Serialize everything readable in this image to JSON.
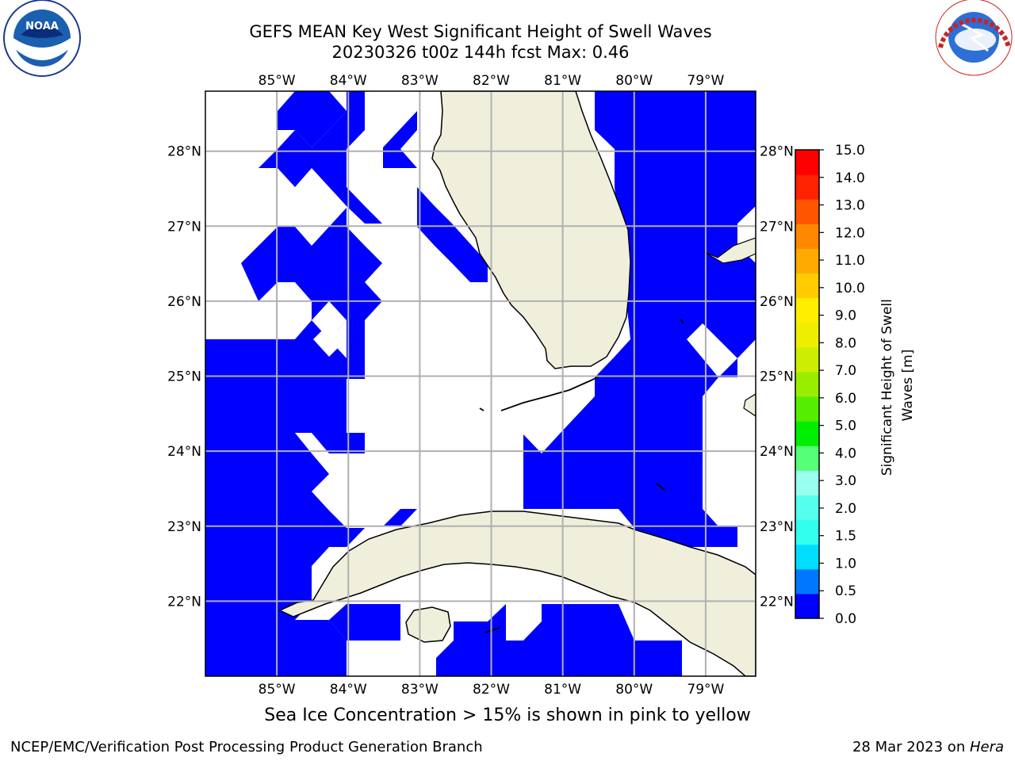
{
  "title_line1": "GEFS MEAN Key West Significant Height of Swell Waves",
  "title_line2": "20230326 t00z 144h fcst   Max: 0.46",
  "bottom_note": "Sea Ice Concentration > 15% is shown in pink to yellow",
  "footer_left": "NCEP/EMC/Verification Post Processing Product Generation Branch",
  "footer_right_date": "28 Mar 2023 on ",
  "footer_right_machine": "Hera",
  "logos": {
    "left": "noaa-logo",
    "right": "nws-logo"
  },
  "map": {
    "lon_range": [
      -86.0,
      -78.3
    ],
    "lat_range": [
      21.0,
      28.8
    ],
    "lon_ticks": [
      "85°W",
      "84°W",
      "83°W",
      "82°W",
      "81°W",
      "80°W",
      "79°W"
    ],
    "lat_ticks": [
      "28°N",
      "27°N",
      "26°N",
      "25°N",
      "24°N",
      "23°N",
      "22°N"
    ],
    "land_color": "#efefdc",
    "swell_color": "#0000ff",
    "grid_color": "#b0b0b0"
  },
  "colorbar": {
    "label_line1": "Significant Height of Swell",
    "label_line2": "Waves [m]",
    "tick_labels": [
      "15.0",
      "14.0",
      "13.0",
      "12.0",
      "11.0",
      "10.0",
      "9.0",
      "8.0",
      "7.0",
      "6.0",
      "5.0",
      "4.0",
      "3.0",
      "2.0",
      "1.5",
      "1.0",
      "0.5",
      "0.0"
    ],
    "colors": [
      "#0000ff",
      "#0077ff",
      "#00ddff",
      "#33ffee",
      "#55ffee",
      "#99ffee",
      "#55ff77",
      "#00ee00",
      "#55ee00",
      "#99ee00",
      "#ccee00",
      "#eeee00",
      "#ffee00",
      "#ffcc00",
      "#ffaa00",
      "#ff8800",
      "#ff5500",
      "#ff2200",
      "#ff0000"
    ]
  }
}
